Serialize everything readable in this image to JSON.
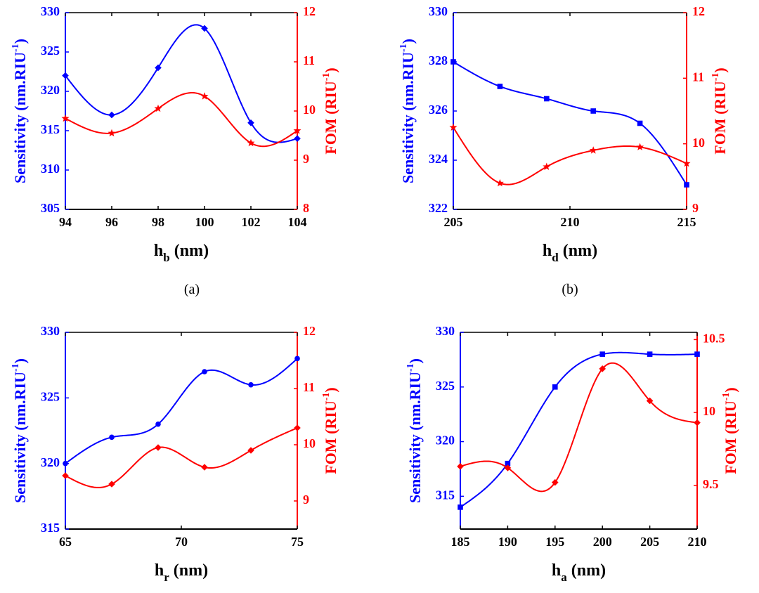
{
  "colors": {
    "left": "#0000ff",
    "right": "#ff0000",
    "axis": "#000000"
  },
  "chart_data": [
    {
      "type": "line",
      "panel_label": "(a)",
      "xlabel": {
        "base": "h",
        "sub": "b",
        "unit": " (nm)"
      },
      "ylabel_left": {
        "text": "Sensitivity (nm.RIU",
        "sup": "-1",
        "end": ")"
      },
      "ylabel_right": {
        "text": "FOM (RIU",
        "sup": "-1",
        "end": ")"
      },
      "xlim": [
        94,
        104
      ],
      "ylim_left": [
        305,
        330
      ],
      "ylim_right": [
        8,
        12
      ],
      "xticks": [
        94,
        96,
        98,
        100,
        102,
        104
      ],
      "yticks_left": [
        305,
        310,
        315,
        320,
        325,
        330
      ],
      "yticks_right": [
        8,
        9,
        10,
        11,
        12
      ],
      "grid": false,
      "series": [
        {
          "axis": "left",
          "marker": "diamond",
          "x": [
            94,
            96,
            98,
            100,
            102,
            104
          ],
          "values": [
            322,
            317,
            323,
            328,
            316,
            314
          ]
        },
        {
          "axis": "right",
          "marker": "star",
          "x": [
            94,
            96,
            98,
            100,
            102,
            104
          ],
          "values": [
            9.85,
            9.55,
            10.05,
            10.3,
            9.35,
            9.6
          ]
        }
      ]
    },
    {
      "type": "line",
      "panel_label": "(b)",
      "xlabel": {
        "base": "h",
        "sub": "d",
        "unit": " (nm)"
      },
      "ylabel_left": {
        "text": "Sensitivity (nm.RIU",
        "sup": "-1",
        "end": ")"
      },
      "ylabel_right": {
        "text": "FOM (RIU",
        "sup": "-1",
        "end": ")"
      },
      "xlim": [
        205,
        215
      ],
      "ylim_left": [
        322,
        330
      ],
      "ylim_right": [
        9,
        12
      ],
      "xticks": [
        205,
        210,
        215
      ],
      "yticks_left": [
        322,
        324,
        326,
        328,
        330
      ],
      "yticks_right": [
        9,
        10,
        11,
        12
      ],
      "grid": false,
      "series": [
        {
          "axis": "left",
          "marker": "square",
          "x": [
            205,
            207,
            209,
            211,
            213,
            215
          ],
          "values": [
            328,
            327,
            326.5,
            326,
            325.5,
            323
          ]
        },
        {
          "axis": "right",
          "marker": "star",
          "x": [
            205,
            207,
            209,
            211,
            213,
            215
          ],
          "values": [
            10.25,
            9.4,
            9.65,
            9.9,
            9.95,
            9.7
          ]
        }
      ]
    },
    {
      "type": "line",
      "panel_label": "",
      "xlabel": {
        "base": "h",
        "sub": "r",
        "unit": " (nm)"
      },
      "ylabel_left": {
        "text": "Sensitivity (nm.RIU",
        "sup": "-1",
        "end": ")"
      },
      "ylabel_right": {
        "text": "FOM (RIU",
        "sup": "-1",
        "end": ")"
      },
      "xlim": [
        65,
        75
      ],
      "ylim_left": [
        315,
        330
      ],
      "ylim_right": [
        8.5,
        12
      ],
      "xticks": [
        65,
        70,
        75
      ],
      "yticks_left": [
        315,
        320,
        325,
        330
      ],
      "yticks_right": [
        9,
        10,
        11,
        12
      ],
      "grid": false,
      "series": [
        {
          "axis": "left",
          "marker": "circle",
          "x": [
            65,
            67,
            69,
            71,
            73,
            75
          ],
          "values": [
            320,
            322,
            323,
            327,
            326,
            328
          ]
        },
        {
          "axis": "right",
          "marker": "diamond",
          "x": [
            65,
            67,
            69,
            71,
            73,
            75
          ],
          "values": [
            9.45,
            9.3,
            9.95,
            9.6,
            9.9,
            10.3
          ]
        }
      ]
    },
    {
      "type": "line",
      "panel_label": "",
      "xlabel": {
        "base": "h",
        "sub": "a",
        "unit": " (nm)"
      },
      "ylabel_left": {
        "text": "Sensitivity (nm.RIU",
        "sup": "-1",
        "end": ")"
      },
      "ylabel_right": {
        "text": "FOM (RIU",
        "sup": "-1",
        "end": ")"
      },
      "xlim": [
        185,
        210
      ],
      "ylim_left": [
        312,
        330
      ],
      "ylim_right": [
        9.2,
        10.55
      ],
      "xticks": [
        185,
        190,
        195,
        200,
        205,
        210
      ],
      "yticks_left": [
        315,
        320,
        325,
        330
      ],
      "yticks_right": [
        9.5,
        10,
        10.5
      ],
      "grid": false,
      "series": [
        {
          "axis": "left",
          "marker": "square",
          "x": [
            185,
            190,
            195,
            200,
            205,
            210
          ],
          "values": [
            314,
            318,
            325,
            328,
            328,
            328
          ]
        },
        {
          "axis": "right",
          "marker": "diamond",
          "x": [
            185,
            190,
            195,
            200,
            205,
            210
          ],
          "values": [
            9.63,
            9.62,
            9.52,
            10.3,
            10.08,
            9.93
          ]
        }
      ]
    }
  ]
}
